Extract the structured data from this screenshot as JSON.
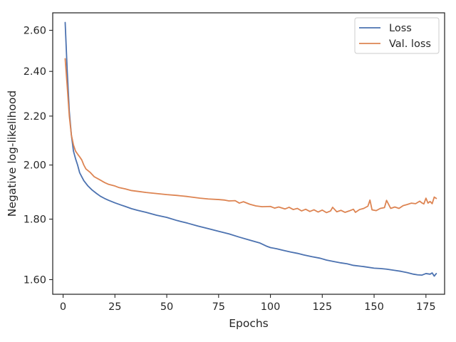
{
  "chart_data": {
    "type": "line",
    "title": "",
    "xlabel": "Epochs",
    "ylabel": "Negative log-likelihood",
    "y_scale": "log",
    "xlim": [
      -5,
      184
    ],
    "ylim": [
      1.555,
      2.69
    ],
    "grid": false,
    "legend_position": "top-right",
    "x_ticks": [
      0,
      25,
      50,
      75,
      100,
      125,
      150,
      175
    ],
    "x_tick_labels": [
      "0",
      "25",
      "50",
      "75",
      "100",
      "125",
      "150",
      "175"
    ],
    "y_ticks": [
      1.6,
      1.8,
      2.0,
      2.2,
      2.4,
      2.6
    ],
    "y_tick_labels": [
      "1.60",
      "1.80",
      "2.00",
      "2.20",
      "2.40",
      "2.60"
    ],
    "series": [
      {
        "name": "Loss",
        "color": "#4c72b0",
        "points": [
          [
            1,
            2.64
          ],
          [
            2,
            2.4
          ],
          [
            3,
            2.22
          ],
          [
            4,
            2.12
          ],
          [
            5,
            2.055
          ],
          [
            6,
            2.025
          ],
          [
            7,
            2.0
          ],
          [
            8,
            1.97
          ],
          [
            9,
            1.955
          ],
          [
            10,
            1.94
          ],
          [
            12,
            1.92
          ],
          [
            14,
            1.905
          ],
          [
            16,
            1.893
          ],
          [
            18,
            1.882
          ],
          [
            20,
            1.874
          ],
          [
            22,
            1.867
          ],
          [
            25,
            1.858
          ],
          [
            28,
            1.85
          ],
          [
            30,
            1.845
          ],
          [
            33,
            1.837
          ],
          [
            36,
            1.831
          ],
          [
            40,
            1.824
          ],
          [
            45,
            1.814
          ],
          [
            50,
            1.806
          ],
          [
            55,
            1.795
          ],
          [
            60,
            1.786
          ],
          [
            65,
            1.776
          ],
          [
            70,
            1.767
          ],
          [
            75,
            1.758
          ],
          [
            80,
            1.749
          ],
          [
            85,
            1.738
          ],
          [
            90,
            1.728
          ],
          [
            95,
            1.718
          ],
          [
            98,
            1.708
          ],
          [
            100,
            1.703
          ],
          [
            103,
            1.699
          ],
          [
            106,
            1.694
          ],
          [
            110,
            1.688
          ],
          [
            113,
            1.684
          ],
          [
            116,
            1.679
          ],
          [
            120,
            1.673
          ],
          [
            124,
            1.668
          ],
          [
            127,
            1.662
          ],
          [
            130,
            1.658
          ],
          [
            134,
            1.653
          ],
          [
            137,
            1.65
          ],
          [
            140,
            1.645
          ],
          [
            145,
            1.641
          ],
          [
            150,
            1.636
          ],
          [
            153,
            1.635
          ],
          [
            156,
            1.633
          ],
          [
            160,
            1.629
          ],
          [
            163,
            1.626
          ],
          [
            166,
            1.622
          ],
          [
            169,
            1.617
          ],
          [
            171,
            1.615
          ],
          [
            173,
            1.614
          ],
          [
            175,
            1.619
          ],
          [
            177,
            1.617
          ],
          [
            178,
            1.621
          ],
          [
            179,
            1.611
          ],
          [
            180,
            1.619
          ]
        ]
      },
      {
        "name": "Val. loss",
        "color": "#dd8452",
        "points": [
          [
            1,
            2.46
          ],
          [
            2,
            2.33
          ],
          [
            3,
            2.2
          ],
          [
            4,
            2.12
          ],
          [
            5,
            2.08
          ],
          [
            6,
            2.055
          ],
          [
            7,
            2.043
          ],
          [
            8,
            2.032
          ],
          [
            9,
            2.02
          ],
          [
            10,
            2.0
          ],
          [
            11,
            1.985
          ],
          [
            13,
            1.972
          ],
          [
            15,
            1.955
          ],
          [
            18,
            1.942
          ],
          [
            20,
            1.933
          ],
          [
            22,
            1.926
          ],
          [
            25,
            1.92
          ],
          [
            27,
            1.914
          ],
          [
            30,
            1.909
          ],
          [
            33,
            1.903
          ],
          [
            36,
            1.9
          ],
          [
            40,
            1.896
          ],
          [
            45,
            1.892
          ],
          [
            50,
            1.888
          ],
          [
            55,
            1.885
          ],
          [
            60,
            1.881
          ],
          [
            63,
            1.878
          ],
          [
            66,
            1.875
          ],
          [
            70,
            1.872
          ],
          [
            75,
            1.87
          ],
          [
            78,
            1.868
          ],
          [
            80,
            1.865
          ],
          [
            83,
            1.866
          ],
          [
            85,
            1.857
          ],
          [
            87,
            1.862
          ],
          [
            90,
            1.853
          ],
          [
            93,
            1.847
          ],
          [
            96,
            1.844
          ],
          [
            100,
            1.845
          ],
          [
            102,
            1.839
          ],
          [
            104,
            1.843
          ],
          [
            107,
            1.836
          ],
          [
            109,
            1.842
          ],
          [
            111,
            1.834
          ],
          [
            113,
            1.838
          ],
          [
            115,
            1.829
          ],
          [
            117,
            1.835
          ],
          [
            119,
            1.827
          ],
          [
            121,
            1.833
          ],
          [
            123,
            1.825
          ],
          [
            125,
            1.832
          ],
          [
            127,
            1.823
          ],
          [
            129,
            1.829
          ],
          [
            130,
            1.842
          ],
          [
            132,
            1.826
          ],
          [
            134,
            1.831
          ],
          [
            136,
            1.824
          ],
          [
            138,
            1.829
          ],
          [
            140,
            1.835
          ],
          [
            141,
            1.824
          ],
          [
            143,
            1.834
          ],
          [
            145,
            1.838
          ],
          [
            147,
            1.846
          ],
          [
            148,
            1.868
          ],
          [
            149,
            1.833
          ],
          [
            151,
            1.83
          ],
          [
            153,
            1.838
          ],
          [
            155,
            1.841
          ],
          [
            156,
            1.867
          ],
          [
            158,
            1.838
          ],
          [
            160,
            1.843
          ],
          [
            162,
            1.838
          ],
          [
            164,
            1.848
          ],
          [
            166,
            1.852
          ],
          [
            168,
            1.857
          ],
          [
            170,
            1.855
          ],
          [
            172,
            1.864
          ],
          [
            173,
            1.858
          ],
          [
            174,
            1.854
          ],
          [
            175,
            1.875
          ],
          [
            176,
            1.857
          ],
          [
            177,
            1.863
          ],
          [
            178,
            1.855
          ],
          [
            179,
            1.879
          ],
          [
            180,
            1.874
          ]
        ]
      }
    ]
  }
}
